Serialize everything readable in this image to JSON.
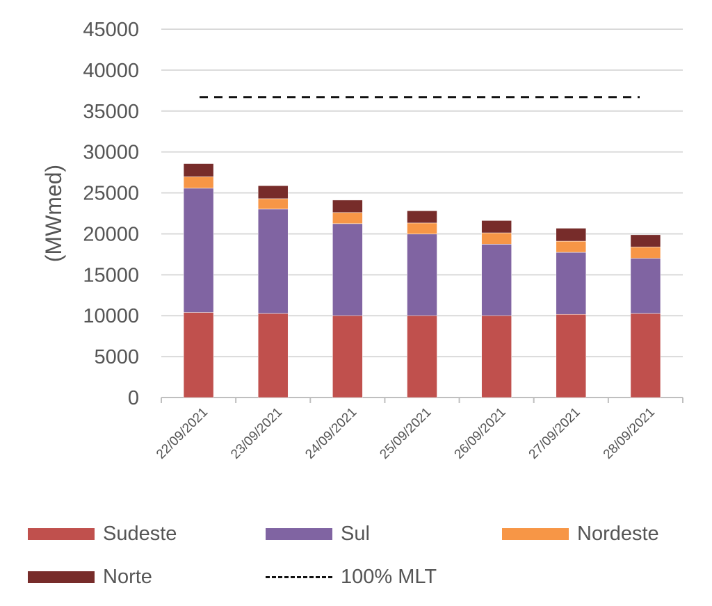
{
  "chart_data": {
    "type": "bar",
    "stacked": true,
    "title": "",
    "xlabel": "",
    "ylabel": "(MWmed)",
    "ylim": [
      0,
      45000
    ],
    "yticks": [
      "0",
      "5000",
      "10000",
      "15000",
      "20000",
      "25000",
      "30000",
      "35000",
      "40000",
      "45000"
    ],
    "grid": true,
    "legend_position": "bottom",
    "categories": [
      "22/09/2021",
      "23/09/2021",
      "24/09/2021",
      "25/09/2021",
      "26/09/2021",
      "27/09/2021",
      "28/09/2021"
    ],
    "series": [
      {
        "name": "Sudeste",
        "color": "#C0504D",
        "values": [
          10400,
          10270,
          10000,
          10000,
          10000,
          10170,
          10270
        ]
      },
      {
        "name": "Sul",
        "color": "#8064A2",
        "values": [
          15170,
          12750,
          11240,
          9970,
          8730,
          7570,
          6740
        ]
      },
      {
        "name": "Nordeste",
        "color": "#F79646",
        "values": [
          1400,
          1270,
          1360,
          1350,
          1390,
          1360,
          1380
        ]
      },
      {
        "name": "Norte",
        "color": "#772C2A",
        "values": [
          1600,
          1590,
          1520,
          1490,
          1500,
          1580,
          1490
        ]
      }
    ],
    "reference_line": {
      "name": "100% MLT",
      "value": 36700,
      "color": "#111111",
      "style": "dashed"
    }
  }
}
